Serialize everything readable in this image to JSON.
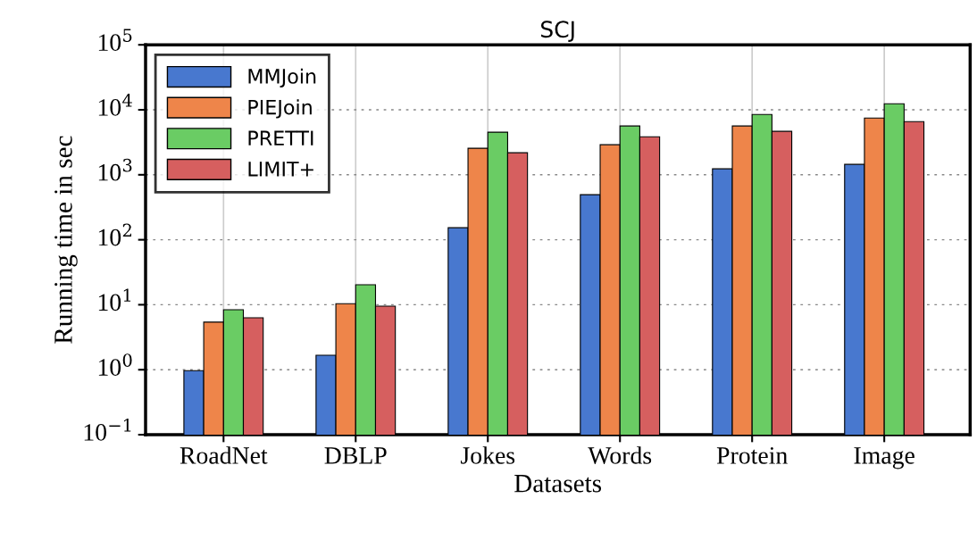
{
  "chart_data": {
    "type": "bar",
    "title": "SCJ",
    "xlabel": "Datasets",
    "ylabel": "Running time in sec",
    "categories": [
      "RoadNet",
      "DBLP",
      "Jokes",
      "Words",
      "Protein",
      "Image"
    ],
    "series": [
      {
        "name": "MMJoin",
        "color": "#4878cf",
        "values": [
          0.97,
          1.67,
          153,
          494,
          1235,
          1445
        ]
      },
      {
        "name": "PIEJoin",
        "color": "#ee854a",
        "values": [
          5.4,
          10.4,
          2560,
          2900,
          5630,
          7480
        ]
      },
      {
        "name": "PRETTI",
        "color": "#6acc64",
        "values": [
          8.4,
          20.3,
          4520,
          5630,
          8490,
          12400
        ]
      },
      {
        "name": "LIMIT+",
        "color": "#d65f5f",
        "values": [
          6.3,
          9.5,
          2180,
          3850,
          4660,
          6590
        ]
      }
    ],
    "log": "y",
    "ylim": [
      0.1,
      100000
    ],
    "yticks": [
      {
        "value": 0.1,
        "label": "10$^{−1}$"
      },
      {
        "value": 1,
        "label": "10$^{0}$"
      },
      {
        "value": 10,
        "label": "10$^{1}$"
      },
      {
        "value": 100,
        "label": "10$^{2}$"
      },
      {
        "value": 1000,
        "label": "10$^{3}$"
      },
      {
        "value": 10000,
        "label": "10$^{4}$"
      },
      {
        "value": 100000,
        "label": "10$^{5}$"
      }
    ],
    "grid": true,
    "legend": "top left"
  }
}
